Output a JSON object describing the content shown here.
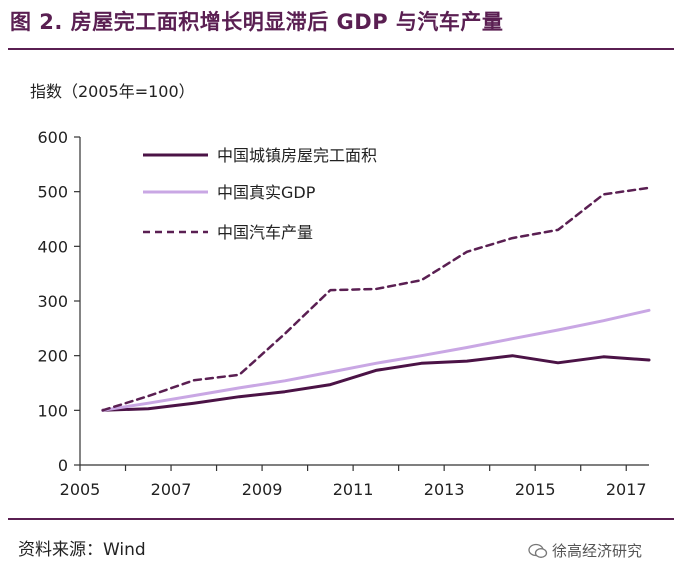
{
  "title": "图 2. 房屋完工面积增长明显滞后 GDP 与汽车产量",
  "unit_label": "指数（2005年=100）",
  "source": "资料来源：Wind",
  "watermark": "徐高经济研究",
  "colors": {
    "brand": "#5a1f52",
    "axis": "#333333",
    "housing": "#4b1346",
    "gdp": "#c9a7e4",
    "auto": "#5a1f52"
  },
  "chart_data": {
    "type": "line",
    "title": "",
    "xlabel": "",
    "ylabel": "指数（2005年=100）",
    "xlim": [
      2005,
      2017.5
    ],
    "ylim": [
      0,
      600
    ],
    "yticks": [
      0,
      100,
      200,
      300,
      400,
      500,
      600
    ],
    "xticks": [
      2005,
      2007,
      2009,
      2011,
      2013,
      2015,
      2017
    ],
    "grid": false,
    "legend_position": "top-left",
    "series": [
      {
        "name": "中国城镇房屋完工面积",
        "style": "solid",
        "color_key": "housing",
        "x": [
          2005.5,
          2006.5,
          2007.5,
          2008.5,
          2009.5,
          2010.5,
          2011.5,
          2012.5,
          2013.5,
          2014.5,
          2015.5,
          2016.5,
          2017.5
        ],
        "y": [
          100,
          103,
          113,
          125,
          134,
          147,
          173,
          186,
          190,
          200,
          187,
          198,
          192
        ]
      },
      {
        "name": "中国真实GDP",
        "style": "solid",
        "color_key": "gdp",
        "x": [
          2005.5,
          2006.5,
          2007.5,
          2008.5,
          2009.5,
          2010.5,
          2011.5,
          2012.5,
          2013.5,
          2014.5,
          2015.5,
          2016.5,
          2017.5
        ],
        "y": [
          100,
          113,
          127,
          141,
          154,
          170,
          186,
          200,
          215,
          231,
          247,
          264,
          283
        ]
      },
      {
        "name": "中国汽车产量",
        "style": "dashed",
        "color_key": "auto",
        "x": [
          2005.5,
          2006.5,
          2007.5,
          2008.5,
          2009.5,
          2010.5,
          2011.5,
          2012.5,
          2013.5,
          2014.5,
          2015.5,
          2016.5,
          2017.5
        ],
        "y": [
          100,
          126,
          155,
          165,
          240,
          320,
          322,
          338,
          390,
          415,
          430,
          495,
          507
        ]
      }
    ]
  }
}
